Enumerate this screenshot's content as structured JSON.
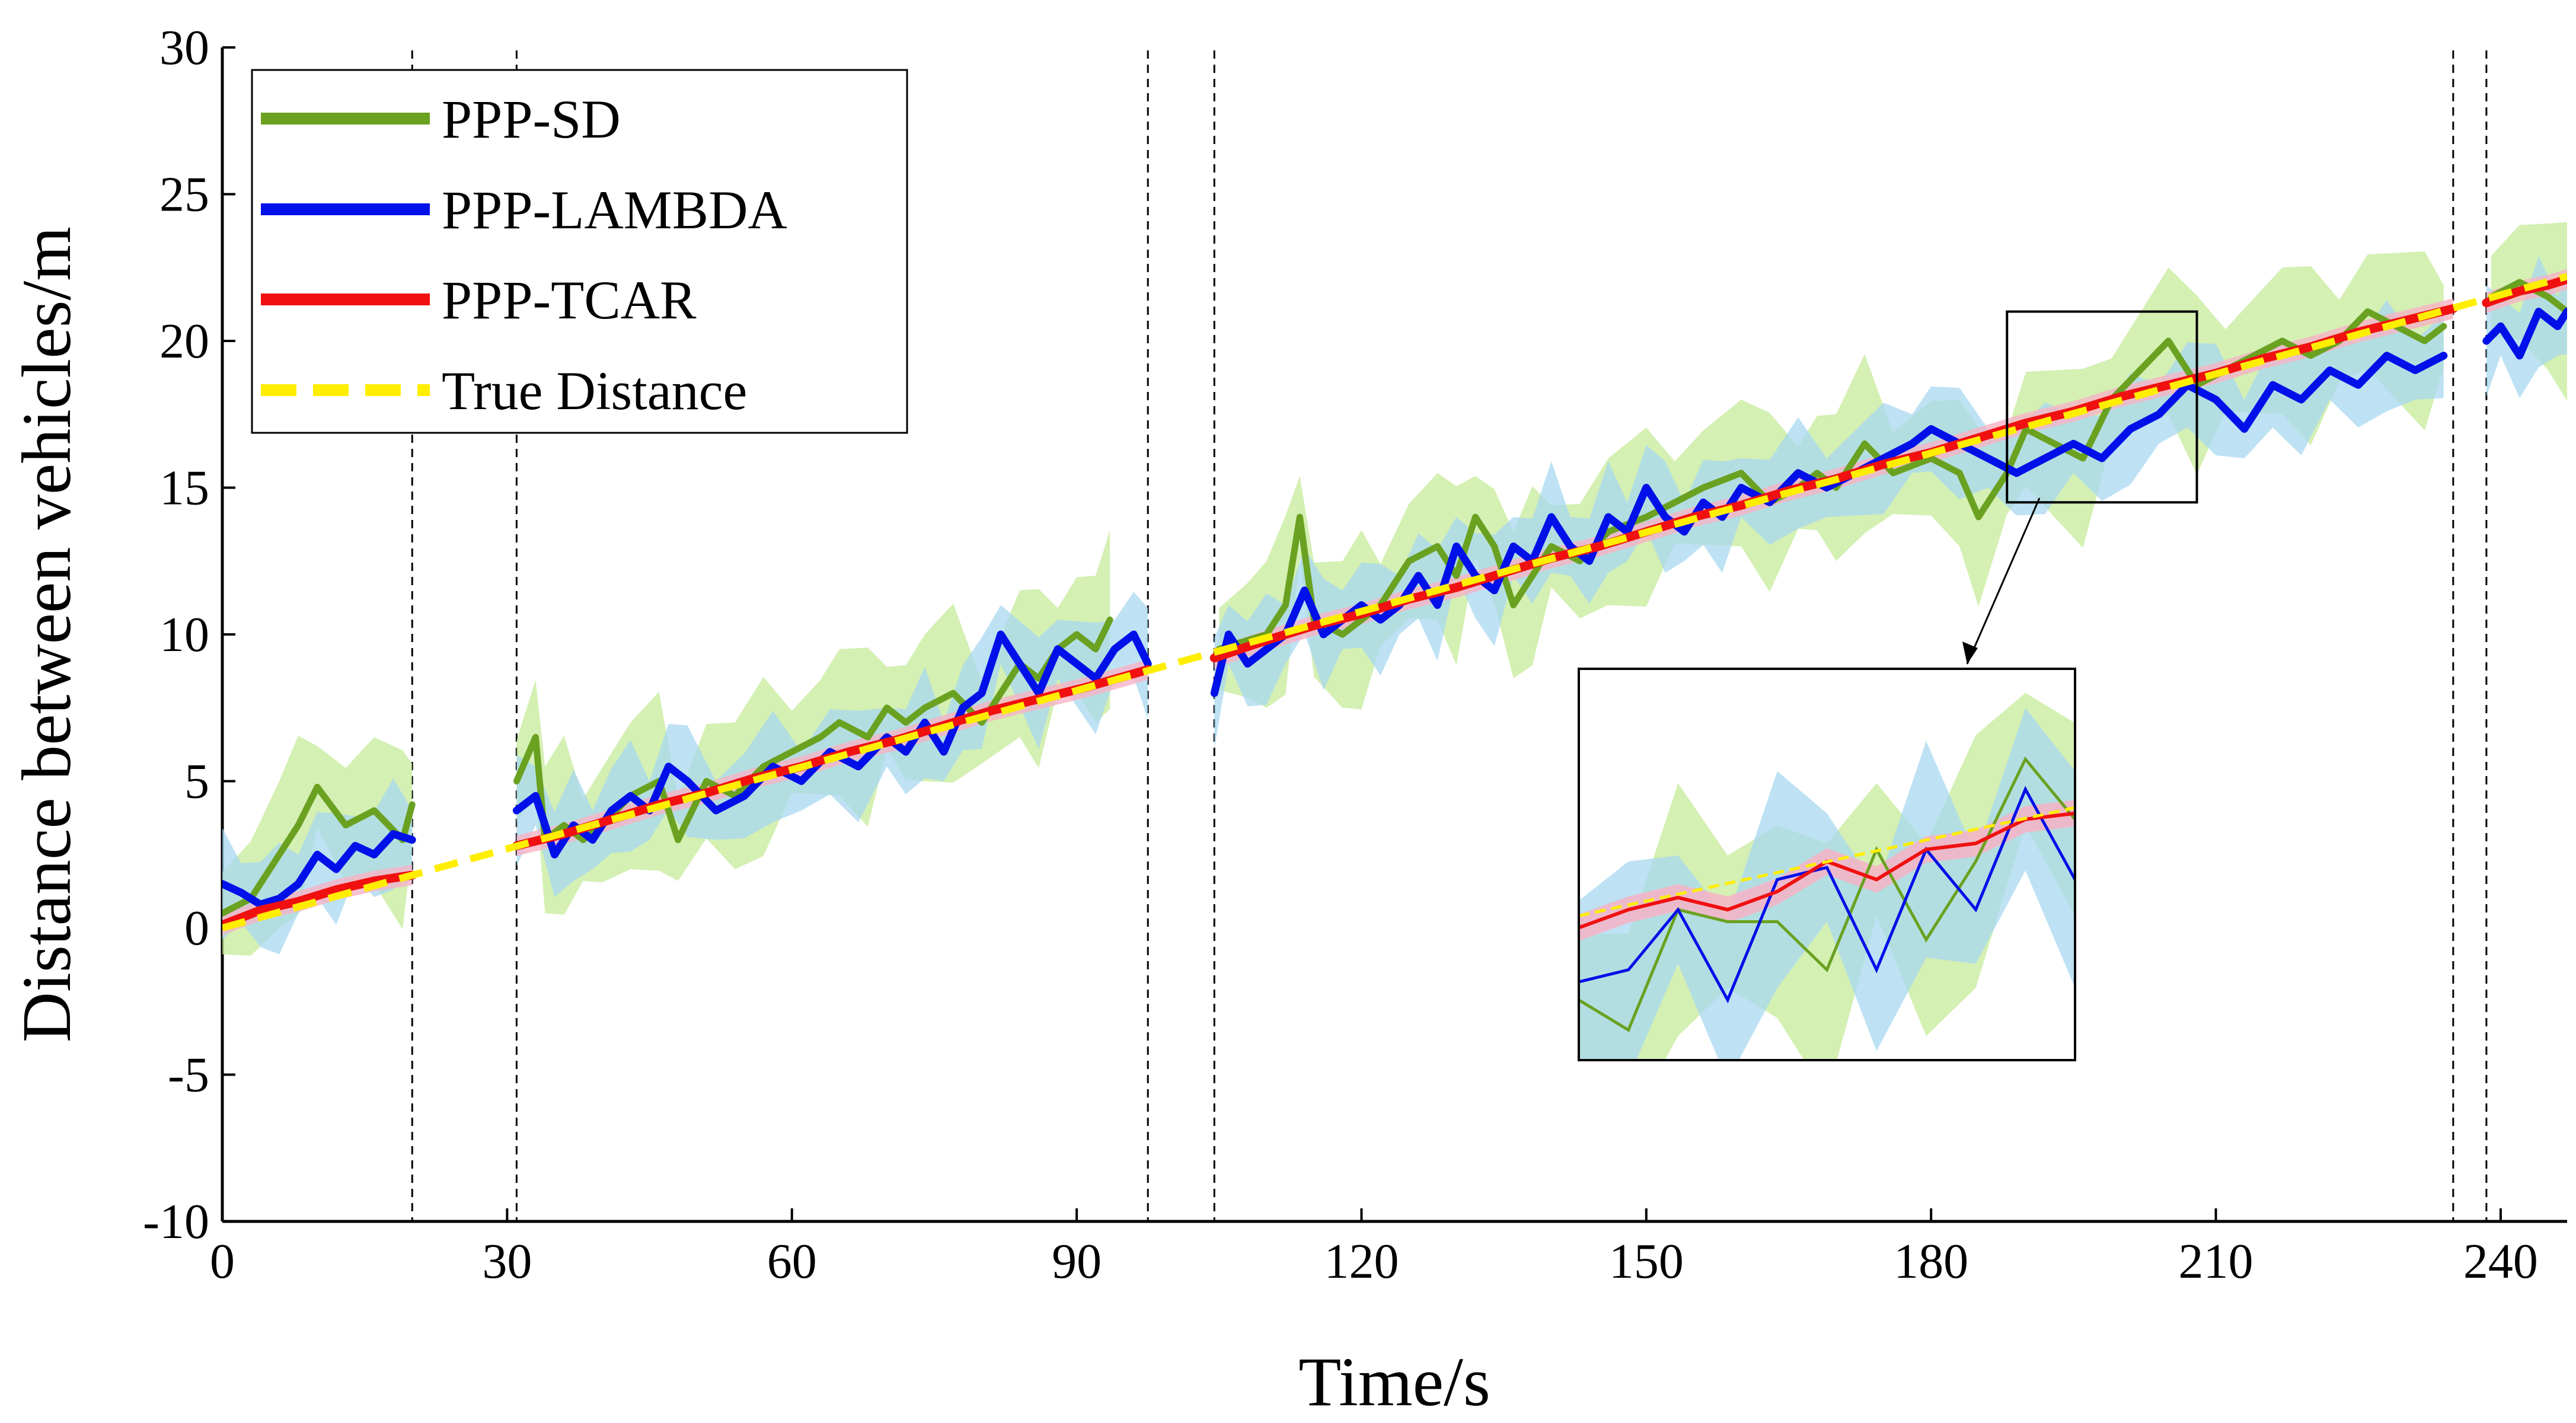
{
  "chart_data": {
    "type": "line",
    "title": "",
    "xlabel": "Time/s",
    "ylabel": "Distance between vehicles/m",
    "xlim": [
      0,
      247
    ],
    "ylim": [
      -10,
      30
    ],
    "xticks": [
      0,
      30,
      60,
      90,
      120,
      150,
      180,
      210,
      240
    ],
    "yticks": [
      30,
      25,
      20,
      15,
      10,
      5,
      0,
      -5,
      -10
    ],
    "outage_boundaries": [
      20,
      31,
      97.5,
      104.5,
      235,
      238.5
    ],
    "legend_position": "top-left",
    "colors": {
      "sd": "#6aa121",
      "sd_band": "#c6eb9a",
      "lambda": "#0010e8",
      "lambda_band": "#a8d8f0",
      "tcar": "#f01010",
      "tcar_band": "#f6b3c6",
      "truth": "#ffee00"
    },
    "series": [
      {
        "key": "sd",
        "name": "PPP-SD",
        "x": [
          0,
          3,
          6,
          8,
          10,
          13,
          16,
          19,
          20,
          31,
          33,
          34,
          36,
          38,
          40,
          43,
          46,
          48,
          51,
          54,
          57,
          60,
          63,
          65,
          68,
          70,
          72,
          74,
          77,
          80,
          82,
          84,
          86,
          88,
          90,
          92,
          93.5,
          105,
          108,
          110,
          112,
          113.5,
          115,
          118,
          120,
          122,
          125,
          128,
          130,
          132,
          134,
          136,
          138,
          140,
          143,
          146,
          150,
          153,
          156,
          160,
          163,
          166,
          168,
          170,
          173,
          176,
          180,
          183,
          185,
          188,
          190,
          193,
          196,
          199,
          202,
          205,
          208,
          211,
          214,
          217,
          220,
          223,
          226,
          229,
          232,
          234,
          239,
          242,
          245,
          247
        ],
        "values": [
          0.5,
          1.0,
          2.5,
          3.5,
          4.8,
          3.5,
          4.0,
          3.0,
          4.2,
          5.0,
          6.5,
          3.0,
          3.5,
          3.0,
          3.5,
          4.5,
          5.0,
          3.0,
          5.0,
          4.5,
          5.5,
          6.0,
          6.5,
          7.0,
          6.5,
          7.5,
          7.0,
          7.5,
          8.0,
          7.0,
          8.0,
          9.0,
          8.5,
          9.5,
          10.0,
          9.5,
          10.5,
          9.5,
          9.8,
          10.0,
          11.0,
          14.0,
          10.5,
          10.0,
          10.5,
          11.0,
          12.5,
          13.0,
          12.0,
          14.0,
          13.0,
          11.0,
          12.0,
          13.0,
          12.5,
          13.5,
          14.0,
          14.5,
          15.0,
          15.5,
          14.5,
          15.0,
          15.5,
          15.0,
          16.5,
          15.5,
          16.0,
          15.5,
          14.0,
          15.5,
          17.0,
          16.5,
          16.0,
          18.0,
          19.0,
          20.0,
          18.5,
          19.0,
          19.5,
          20.0,
          19.5,
          20.0,
          21.0,
          20.5,
          20.0,
          20.5,
          21.5,
          22.0,
          21.5,
          21.0
        ]
      },
      {
        "key": "lambda",
        "name": "PPP-LAMBDA",
        "x": [
          0,
          2,
          4,
          6,
          8,
          10,
          12,
          14,
          16,
          18,
          20,
          31,
          33,
          35,
          37,
          39,
          41,
          43,
          45,
          47,
          49,
          52,
          55,
          58,
          61,
          64,
          67,
          70,
          72,
          74,
          76,
          78,
          80,
          82,
          84,
          86,
          88,
          90,
          92,
          94,
          96,
          97.5,
          104.5,
          106,
          108,
          110,
          112,
          114,
          116,
          118,
          120,
          122,
          124,
          126,
          128,
          130,
          132,
          134,
          136,
          138,
          140,
          142,
          144,
          146,
          148,
          150,
          152,
          154,
          156,
          158,
          160,
          163,
          166,
          169,
          172,
          175,
          178,
          180,
          183,
          186,
          189,
          192,
          195,
          198,
          201,
          204,
          207,
          210,
          213,
          216,
          219,
          222,
          225,
          228,
          231,
          234,
          238.5,
          240,
          242,
          244,
          246,
          247
        ],
        "values": [
          1.5,
          1.2,
          0.8,
          1.0,
          1.5,
          2.5,
          2.0,
          2.8,
          2.5,
          3.2,
          3.0,
          4.0,
          4.5,
          2.5,
          3.5,
          3.0,
          4.0,
          4.5,
          4.0,
          5.5,
          5.0,
          4.0,
          4.5,
          5.5,
          5.0,
          6.0,
          5.5,
          6.5,
          6.0,
          7.0,
          6.0,
          7.5,
          8.0,
          10.0,
          9.0,
          8.0,
          9.5,
          9.0,
          8.5,
          9.5,
          10.0,
          9.0,
          8.0,
          10.0,
          9.0,
          9.5,
          10.0,
          11.5,
          10.0,
          10.5,
          11.0,
          10.5,
          11.0,
          12.0,
          11.0,
          13.0,
          12.0,
          11.5,
          13.0,
          12.5,
          14.0,
          13.0,
          12.5,
          14.0,
          13.5,
          15.0,
          14.0,
          13.5,
          14.5,
          14.0,
          15.0,
          14.5,
          15.5,
          15.0,
          15.5,
          16.0,
          16.5,
          17.0,
          16.5,
          16.0,
          15.5,
          16.0,
          16.5,
          16.0,
          17.0,
          17.5,
          18.5,
          18.0,
          17.0,
          18.5,
          18.0,
          19.0,
          18.5,
          19.5,
          19.0,
          19.5,
          20.0,
          20.5,
          19.5,
          21.0,
          20.5,
          21.0
        ]
      },
      {
        "key": "tcar",
        "name": "PPP-TCAR",
        "x": [
          0,
          4,
          8,
          12,
          16,
          20,
          31,
          36,
          41,
          46,
          51,
          56,
          61,
          66,
          71,
          76,
          81,
          86,
          91,
          97.5,
          104.5,
          110,
          115,
          120,
          125,
          130,
          135,
          140,
          145,
          150,
          155,
          160,
          165,
          170,
          175,
          180,
          185,
          190,
          195,
          200,
          205,
          210,
          215,
          220,
          225,
          230,
          235,
          238.5,
          242,
          245,
          247
        ],
        "values": [
          0.1,
          0.6,
          0.9,
          1.3,
          1.6,
          1.8,
          2.8,
          3.2,
          3.7,
          4.2,
          4.6,
          5.1,
          5.5,
          6.0,
          6.4,
          6.9,
          7.4,
          7.8,
          8.2,
          8.8,
          9.2,
          9.8,
          10.3,
          10.7,
          11.2,
          11.6,
          12.1,
          12.6,
          13.0,
          13.5,
          14.0,
          14.4,
          14.9,
          15.3,
          15.8,
          16.2,
          16.7,
          17.2,
          17.6,
          18.1,
          18.5,
          18.9,
          19.4,
          19.8,
          20.3,
          20.7,
          21.1,
          21.3,
          21.7,
          21.9,
          22.1
        ]
      },
      {
        "key": "truth",
        "name": "True Distance",
        "x": [
          0,
          247
        ],
        "values": [
          0.0,
          22.2
        ]
      }
    ],
    "inset": {
      "x_range": [
        188,
        208
      ],
      "y_range": [
        14.5,
        21
      ],
      "sd": {
        "x": [
          188,
          190,
          192,
          194,
          196,
          198,
          200,
          202,
          204,
          206,
          208
        ],
        "values": [
          15.5,
          15.0,
          17.0,
          16.8,
          16.8,
          16.0,
          18.0,
          16.5,
          17.8,
          19.5,
          18.5
        ]
      },
      "lambda": {
        "x": [
          188,
          190,
          192,
          194,
          196,
          198,
          200,
          202,
          204,
          206,
          208
        ],
        "values": [
          15.8,
          16.0,
          17.0,
          15.5,
          17.5,
          17.7,
          16.0,
          18.0,
          17.0,
          19.0,
          17.5
        ]
      },
      "tcar": {
        "x": [
          188,
          190,
          192,
          194,
          196,
          198,
          200,
          202,
          204,
          206,
          208
        ],
        "values": [
          16.7,
          17.0,
          17.2,
          17.0,
          17.3,
          17.8,
          17.5,
          18.0,
          18.1,
          18.5,
          18.6
        ]
      }
    }
  }
}
